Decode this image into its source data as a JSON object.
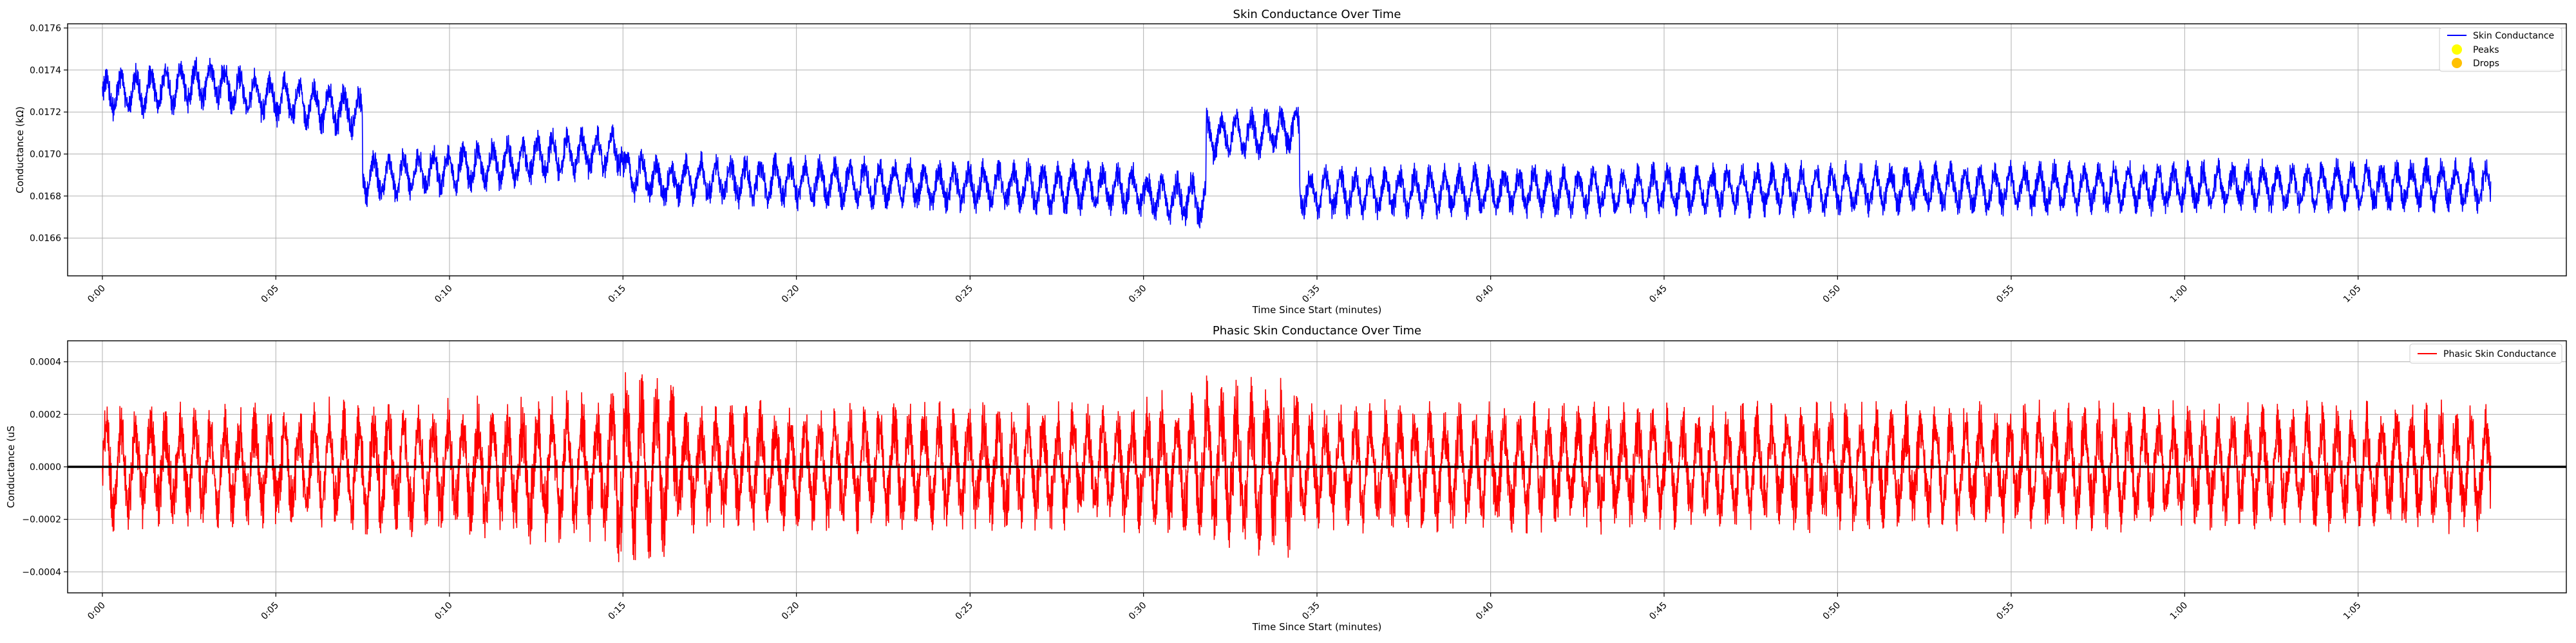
{
  "chart_data": [
    {
      "type": "line",
      "title": "Skin Conductance Over Time",
      "xlabel": "Time Since Start (minutes)",
      "ylabel": "Conductance (kΩ)",
      "xlim": [
        -0.0167,
        1.1833
      ],
      "ylim": [
        0.01642,
        0.01762
      ],
      "x_ticks": [
        0,
        0.0833,
        0.1667,
        0.25,
        0.3333,
        0.4167,
        0.5,
        0.5833,
        0.6667,
        0.75,
        0.8333,
        0.9167,
        1.0,
        1.0833
      ],
      "x_tick_labels": [
        "0:00",
        "0:05",
        "0:10",
        "0:15",
        "0:20",
        "0:25",
        "0:30",
        "0:35",
        "0:40",
        "0:45",
        "0:50",
        "0:55",
        "1:00",
        "1:05"
      ],
      "y_ticks": [
        0.0166,
        0.0168,
        0.017,
        0.0172,
        0.0174,
        0.0176
      ],
      "y_tick_labels": [
        "0.0166",
        "0.0168",
        "0.0170",
        "0.0172",
        "0.0174",
        "0.0176"
      ],
      "grid": true,
      "legend_placement": "top-right",
      "legend": [
        {
          "label": "Skin Conductance",
          "kind": "line",
          "color": "#0000ff"
        },
        {
          "label": "Peaks",
          "kind": "marker",
          "color": "#ffff00"
        },
        {
          "label": "Drops",
          "kind": "marker",
          "color": "#ffc000"
        }
      ],
      "series": [
        {
          "name": "Skin Conductance",
          "color": "#0000ff",
          "x_range": [
            0.0,
            1.147
          ],
          "baseline_segments": [
            {
              "x": [
                0.0,
                0.058
              ],
              "y": [
                0.01728,
                0.01735
              ]
            },
            {
              "x": [
                0.058,
                0.125
              ],
              "y": [
                0.01731,
                0.01719
              ]
            },
            {
              "x": [
                0.125,
                0.205
              ],
              "y": [
                0.01688,
                0.01697
              ]
            },
            {
              "x": [
                0.205,
                0.25
              ],
              "y": [
                0.01698,
                0.01702
              ]
            },
            {
              "x": [
                0.25,
                0.275
              ],
              "y": [
                0.01692,
                0.01685
              ]
            },
            {
              "x": [
                0.275,
                0.5
              ],
              "y": [
                0.01688,
                0.01683
              ]
            },
            {
              "x": [
                0.5,
                0.53
              ],
              "y": [
                0.0168,
                0.01678
              ]
            },
            {
              "x": [
                0.53,
                0.575
              ],
              "y": [
                0.01708,
                0.01712
              ]
            },
            {
              "x": [
                0.575,
                1.147
              ],
              "y": [
                0.01682,
                0.01685
              ]
            }
          ],
          "oscillation_amplitude": 0.00014
        }
      ]
    },
    {
      "type": "line",
      "title": "Phasic Skin Conductance Over Time",
      "xlabel": "Time Since Start (minutes)",
      "ylabel": "Conductance (uS",
      "xlim": [
        -0.0167,
        1.1833
      ],
      "ylim": [
        -0.00048,
        0.00048
      ],
      "x_ticks": [
        0,
        0.0833,
        0.1667,
        0.25,
        0.3333,
        0.4167,
        0.5,
        0.5833,
        0.6667,
        0.75,
        0.8333,
        0.9167,
        1.0,
        1.0833
      ],
      "x_tick_labels": [
        "0:00",
        "0:05",
        "0:10",
        "0:15",
        "0:20",
        "0:25",
        "0:30",
        "0:35",
        "0:40",
        "0:45",
        "0:50",
        "0:55",
        "1:00",
        "1:05"
      ],
      "y_ticks": [
        -0.0004,
        -0.0002,
        0.0,
        0.0002,
        0.0004
      ],
      "y_tick_labels": [
        "−0.0004",
        "−0.0002",
        "0.0000",
        "0.0002",
        "0.0004"
      ],
      "grid": true,
      "zero_line": true,
      "legend_placement": "top-right",
      "legend": [
        {
          "label": "Phasic Skin Conductance",
          "kind": "line",
          "color": "#ff0000"
        }
      ],
      "series": [
        {
          "name": "Phasic Skin Conductance",
          "color": "#ff0000",
          "x_range": [
            0.0,
            1.147
          ],
          "amplitude_segments": [
            {
              "x": [
                0.0,
                0.1
              ],
              "amp": 0.00025
            },
            {
              "x": [
                0.1,
                0.2
              ],
              "amp": 0.00028
            },
            {
              "x": [
                0.2,
                0.245
              ],
              "amp": 0.0003
            },
            {
              "x": [
                0.245,
                0.275
              ],
              "amp": 0.0004
            },
            {
              "x": [
                0.275,
                0.5
              ],
              "amp": 0.00026
            },
            {
              "x": [
                0.5,
                0.53
              ],
              "amp": 0.0003
            },
            {
              "x": [
                0.53,
                0.575
              ],
              "amp": 0.00035
            },
            {
              "x": [
                0.575,
                1.147
              ],
              "amp": 0.00026
            }
          ]
        }
      ]
    }
  ]
}
